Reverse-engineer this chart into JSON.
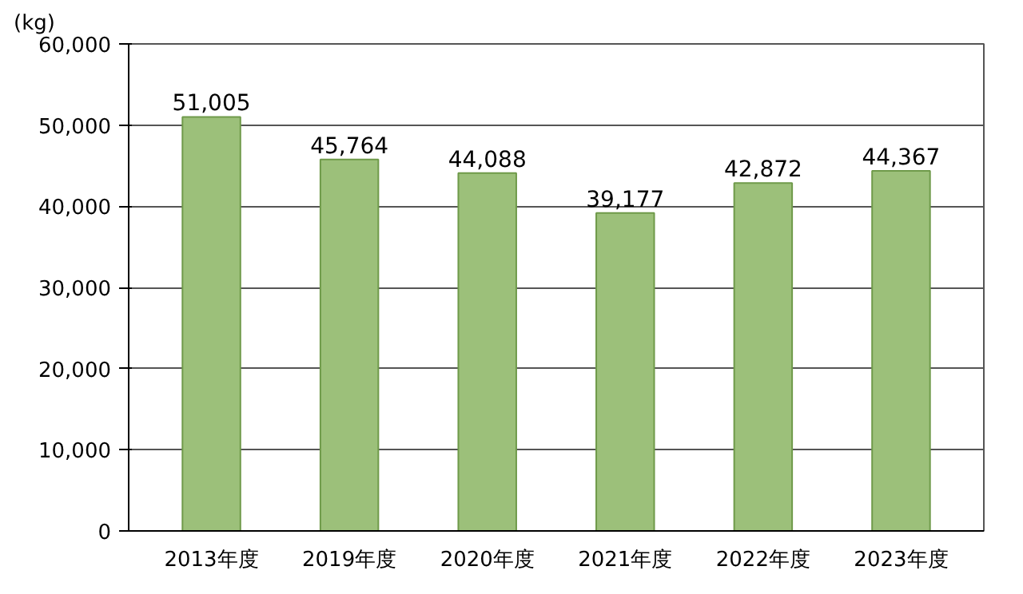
{
  "chart_data": {
    "type": "bar",
    "ylabel": "(kg)",
    "categories": [
      "2013年度",
      "2019年度",
      "2020年度",
      "2021年度",
      "2022年度",
      "2023年度"
    ],
    "values": [
      51005,
      45764,
      44088,
      39177,
      42872,
      44367
    ],
    "value_labels": [
      "51,005",
      "45,764",
      "44,088",
      "39,177",
      "42,872",
      "44,367"
    ],
    "color": "#9cc07a",
    "ylim": [
      0,
      60000
    ],
    "yticks": [
      0,
      {
        "value": 10000,
        "label": "10,000"
      },
      {
        "value": 20000,
        "label": "20,000"
      },
      {
        "value": 30000,
        "label": "30,000"
      },
      {
        "value": 40000,
        "label": "40,000"
      },
      {
        "value": 50000,
        "label": "50,000"
      },
      {
        "value": 60000,
        "label": "60,000"
      }
    ],
    "grid": "y"
  }
}
